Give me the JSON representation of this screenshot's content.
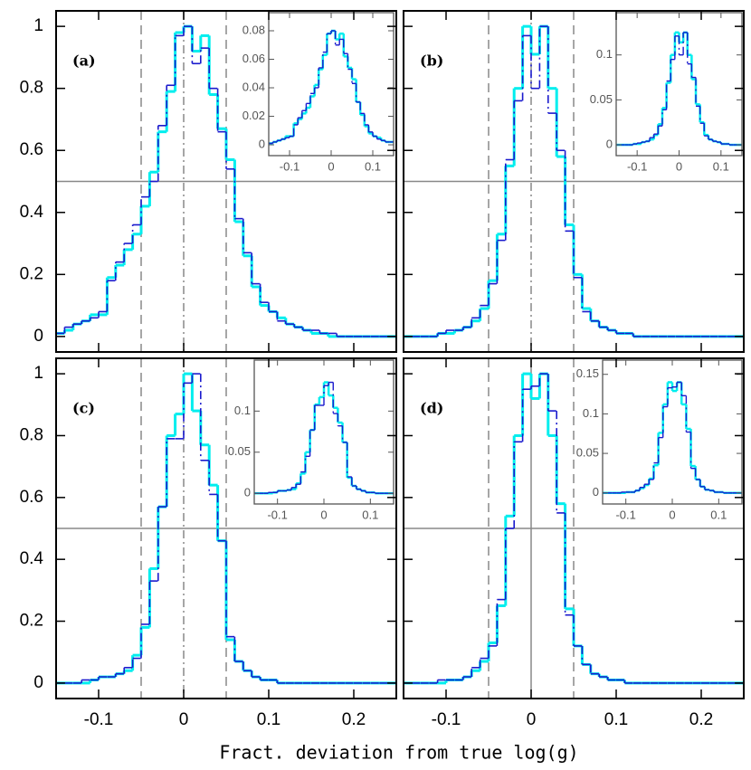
{
  "chart_data": {
    "type": "histogram",
    "xlabel": "Fract. deviation from true log(g)",
    "bins": [
      -0.15,
      -0.14,
      -0.13,
      -0.12,
      -0.11,
      -0.1,
      -0.09,
      -0.08,
      -0.07,
      -0.06,
      -0.05,
      -0.04,
      -0.03,
      -0.02,
      -0.01,
      0,
      0.01,
      0.02,
      0.03,
      0.04,
      0.05,
      0.06,
      0.07,
      0.08,
      0.09,
      0.1,
      0.11,
      0.12,
      0.13,
      0.14,
      0.15,
      0.16,
      0.17,
      0.18,
      0.19,
      0.2,
      0.21,
      0.22,
      0.23,
      0.24,
      0.25
    ],
    "xlim": [
      -0.15,
      0.25
    ],
    "xticks": [
      -0.1,
      0,
      0.1,
      0.2
    ],
    "ylim": [
      -0.05,
      1.05
    ],
    "yticks": [
      0,
      0.2,
      0.4,
      0.6,
      0.8,
      1
    ],
    "inset_bins": [
      -0.15,
      -0.14,
      -0.13,
      -0.12,
      -0.11,
      -0.1,
      -0.09,
      -0.08,
      -0.07,
      -0.06,
      -0.05,
      -0.04,
      -0.03,
      -0.02,
      -0.01,
      0,
      0.01,
      0.02,
      0.03,
      0.04,
      0.05,
      0.06,
      0.07,
      0.08,
      0.09,
      0.1,
      0.11,
      0.12,
      0.13,
      0.14,
      0.15
    ],
    "inset_xlim": [
      -0.15,
      0.15
    ],
    "inset_xticks": [
      -0.1,
      0,
      0.1
    ],
    "panels": [
      {
        "label": "(a)",
        "hline": 0.5,
        "vlines": [
          {
            "x": -0.05,
            "style": "dashed"
          },
          {
            "x": 0,
            "style": "dashdot"
          },
          {
            "x": 0.05,
            "style": "dashed"
          }
        ],
        "series": [
          {
            "color": "#00eeee",
            "style": "solid",
            "values": [
              0.01,
              0.02,
              0.04,
              0.05,
              0.07,
              0.07,
              0.19,
              0.23,
              0.28,
              0.33,
              0.42,
              0.53,
              0.66,
              0.79,
              0.98,
              1.0,
              0.92,
              0.97,
              0.78,
              0.67,
              0.57,
              0.37,
              0.26,
              0.16,
              0.1,
              0.08,
              0.06,
              0.04,
              0.03,
              0.02,
              0.01,
              0.01,
              0,
              0,
              0,
              0,
              0,
              0,
              0,
              0
            ]
          },
          {
            "color": "#1a1acd",
            "style": "dashdot",
            "values": [
              0.01,
              0.03,
              0.04,
              0.05,
              0.06,
              0.08,
              0.18,
              0.24,
              0.3,
              0.36,
              0.45,
              0.5,
              0.68,
              0.81,
              0.97,
              1.0,
              0.88,
              0.93,
              0.8,
              0.66,
              0.54,
              0.38,
              0.27,
              0.17,
              0.11,
              0.08,
              0.05,
              0.04,
              0.03,
              0.02,
              0.02,
              0.01,
              0.01,
              0,
              0,
              0,
              0,
              0,
              0,
              0
            ]
          }
        ],
        "inset": {
          "ylim": [
            -0.0076,
            0.0927
          ],
          "yticks": [
            0,
            0.02,
            0.04,
            0.06,
            0.08
          ],
          "series": [
            {
              "color": "#00eeee",
              "style": "solid",
              "values": [
                0.001,
                0.002,
                0.003,
                0.004,
                0.006,
                0.006,
                0.015,
                0.018,
                0.022,
                0.026,
                0.034,
                0.042,
                0.053,
                0.063,
                0.078,
                0.08,
                0.074,
                0.078,
                0.062,
                0.054,
                0.046,
                0.03,
                0.021,
                0.013,
                0.008,
                0.006,
                0.005,
                0.003,
                0.002,
                0.002
              ]
            },
            {
              "color": "#1a1acd",
              "style": "dashdot",
              "values": [
                0.001,
                0.002,
                0.003,
                0.004,
                0.005,
                0.006,
                0.014,
                0.019,
                0.024,
                0.029,
                0.036,
                0.04,
                0.054,
                0.065,
                0.078,
                0.08,
                0.07,
                0.074,
                0.064,
                0.053,
                0.043,
                0.03,
                0.022,
                0.014,
                0.009,
                0.006,
                0.004,
                0.003,
                0.002,
                0.002
              ]
            }
          ]
        }
      },
      {
        "label": "(b)",
        "hline": 0.5,
        "vlines": [
          {
            "x": -0.05,
            "style": "dashed"
          },
          {
            "x": 0,
            "style": "dashdot"
          },
          {
            "x": 0.05,
            "style": "dashed"
          }
        ],
        "series": [
          {
            "color": "#00eeee",
            "style": "solid",
            "values": [
              0,
              0,
              0,
              0,
              0.01,
              0.01,
              0.02,
              0.03,
              0.05,
              0.09,
              0.18,
              0.33,
              0.55,
              0.8,
              1.0,
              0.91,
              1.0,
              0.8,
              0.58,
              0.36,
              0.2,
              0.09,
              0.05,
              0.03,
              0.02,
              0.01,
              0.01,
              0,
              0,
              0,
              0,
              0,
              0,
              0,
              0,
              0,
              0,
              0,
              0,
              0
            ]
          },
          {
            "color": "#1a1acd",
            "style": "dashdot",
            "values": [
              0,
              0,
              0,
              0,
              0.01,
              0.02,
              0.02,
              0.03,
              0.06,
              0.1,
              0.17,
              0.31,
              0.57,
              0.76,
              0.97,
              0.8,
              1.0,
              0.72,
              0.6,
              0.34,
              0.19,
              0.08,
              0.05,
              0.03,
              0.02,
              0.01,
              0.01,
              0,
              0,
              0,
              0,
              0,
              0,
              0,
              0,
              0,
              0,
              0,
              0,
              0
            ]
          }
        ],
        "inset": {
          "ylim": [
            -0.012,
            0.147
          ],
          "yticks": [
            0,
            0.05,
            0.1
          ],
          "series": [
            {
              "color": "#00eeee",
              "style": "solid",
              "values": [
                0,
                0,
                0,
                0,
                0.001,
                0.001,
                0.003,
                0.004,
                0.006,
                0.011,
                0.023,
                0.041,
                0.069,
                0.1,
                0.125,
                0.114,
                0.125,
                0.1,
                0.073,
                0.045,
                0.025,
                0.011,
                0.006,
                0.004,
                0.003,
                0.001,
                0.001,
                0,
                0,
                0
              ]
            },
            {
              "color": "#1a1acd",
              "style": "dashdot",
              "values": [
                0,
                0,
                0,
                0,
                0.001,
                0.002,
                0.003,
                0.004,
                0.008,
                0.012,
                0.021,
                0.039,
                0.071,
                0.095,
                0.121,
                0.1,
                0.125,
                0.09,
                0.075,
                0.043,
                0.024,
                0.01,
                0.006,
                0.004,
                0.003,
                0.001,
                0.001,
                0,
                0,
                0
              ]
            }
          ]
        }
      },
      {
        "label": "(c)",
        "hline": 0.5,
        "vlines": [
          {
            "x": -0.05,
            "style": "dashed"
          },
          {
            "x": 0,
            "style": "dashdot"
          },
          {
            "x": 0.05,
            "style": "dashed"
          }
        ],
        "series": [
          {
            "color": "#00eeee",
            "style": "solid",
            "values": [
              0,
              0,
              0,
              0,
              0.01,
              0.02,
              0.02,
              0.03,
              0.04,
              0.09,
              0.18,
              0.37,
              0.57,
              0.8,
              0.87,
              1.0,
              0.88,
              0.77,
              0.64,
              0.46,
              0.14,
              0.07,
              0.04,
              0.02,
              0.01,
              0.01,
              0,
              0,
              0,
              0,
              0,
              0,
              0,
              0,
              0,
              0,
              0,
              0,
              0,
              0
            ]
          },
          {
            "color": "#1a1acd",
            "style": "dashdot",
            "values": [
              0,
              0,
              0,
              0.01,
              0.01,
              0.02,
              0.02,
              0.03,
              0.05,
              0.08,
              0.19,
              0.33,
              0.57,
              0.79,
              0.79,
              0.97,
              1.0,
              0.72,
              0.61,
              0.46,
              0.15,
              0.07,
              0.04,
              0.02,
              0.01,
              0.01,
              0,
              0,
              0,
              0,
              0,
              0,
              0,
              0,
              0,
              0,
              0,
              0,
              0,
              0
            ]
          }
        ],
        "inset": {
          "ylim": [
            -0.013,
            0.162
          ],
          "yticks": [
            0,
            0.05,
            0.1
          ],
          "series": [
            {
              "color": "#00eeee",
              "style": "solid",
              "values": [
                0,
                0,
                0,
                0,
                0.001,
                0.003,
                0.003,
                0.004,
                0.005,
                0.012,
                0.024,
                0.05,
                0.077,
                0.108,
                0.117,
                0.135,
                0.119,
                0.104,
                0.086,
                0.062,
                0.019,
                0.009,
                0.005,
                0.003,
                0.001,
                0.001,
                0,
                0,
                0,
                0
              ]
            },
            {
              "color": "#1a1acd",
              "style": "dashdot",
              "values": [
                0,
                0,
                0,
                0.001,
                0.001,
                0.003,
                0.003,
                0.004,
                0.007,
                0.011,
                0.026,
                0.045,
                0.077,
                0.107,
                0.107,
                0.131,
                0.135,
                0.097,
                0.082,
                0.062,
                0.02,
                0.009,
                0.005,
                0.003,
                0.001,
                0.001,
                0,
                0,
                0,
                0
              ]
            }
          ]
        }
      },
      {
        "label": "(d)",
        "hline": 0.5,
        "vlines": [
          {
            "x": -0.05,
            "style": "dashed"
          },
          {
            "x": 0,
            "style": "solid"
          },
          {
            "x": 0.05,
            "style": "dashed"
          }
        ],
        "series": [
          {
            "color": "#00eeee",
            "style": "solid",
            "values": [
              0,
              0,
              0,
              0,
              0,
              0.01,
              0.01,
              0.02,
              0.04,
              0.07,
              0.13,
              0.25,
              0.54,
              0.8,
              1.0,
              0.92,
              1.0,
              0.8,
              0.58,
              0.24,
              0.12,
              0.06,
              0.03,
              0.02,
              0.01,
              0.01,
              0,
              0,
              0,
              0,
              0,
              0,
              0,
              0,
              0,
              0,
              0,
              0,
              0,
              0
            ]
          },
          {
            "color": "#1a1acd",
            "style": "dashdot",
            "values": [
              0,
              0,
              0,
              0,
              0.01,
              0.01,
              0.01,
              0.02,
              0.05,
              0.08,
              0.12,
              0.27,
              0.5,
              0.78,
              0.95,
              0.96,
              1.0,
              0.88,
              0.55,
              0.22,
              0.12,
              0.06,
              0.03,
              0.02,
              0.01,
              0.01,
              0,
              0,
              0,
              0,
              0,
              0,
              0,
              0,
              0,
              0,
              0,
              0,
              0,
              0
            ]
          }
        ],
        "inset": {
          "ylim": [
            -0.014,
            0.168
          ],
          "yticks": [
            0,
            0.05,
            0.1,
            0.15
          ],
          "series": [
            {
              "color": "#00eeee",
              "style": "solid",
              "values": [
                0,
                0,
                0,
                0,
                0,
                0.001,
                0.001,
                0.003,
                0.006,
                0.01,
                0.018,
                0.035,
                0.076,
                0.112,
                0.14,
                0.129,
                0.14,
                0.112,
                0.081,
                0.034,
                0.017,
                0.008,
                0.004,
                0.003,
                0.001,
                0.001,
                0,
                0,
                0,
                0
              ]
            },
            {
              "color": "#1a1acd",
              "style": "dashdot",
              "values": [
                0,
                0,
                0,
                0,
                0.001,
                0.001,
                0.001,
                0.003,
                0.007,
                0.011,
                0.017,
                0.038,
                0.07,
                0.109,
                0.133,
                0.134,
                0.14,
                0.123,
                0.077,
                0.031,
                0.017,
                0.008,
                0.004,
                0.003,
                0.001,
                0.001,
                0,
                0,
                0,
                0
              ]
            }
          ]
        }
      }
    ]
  }
}
